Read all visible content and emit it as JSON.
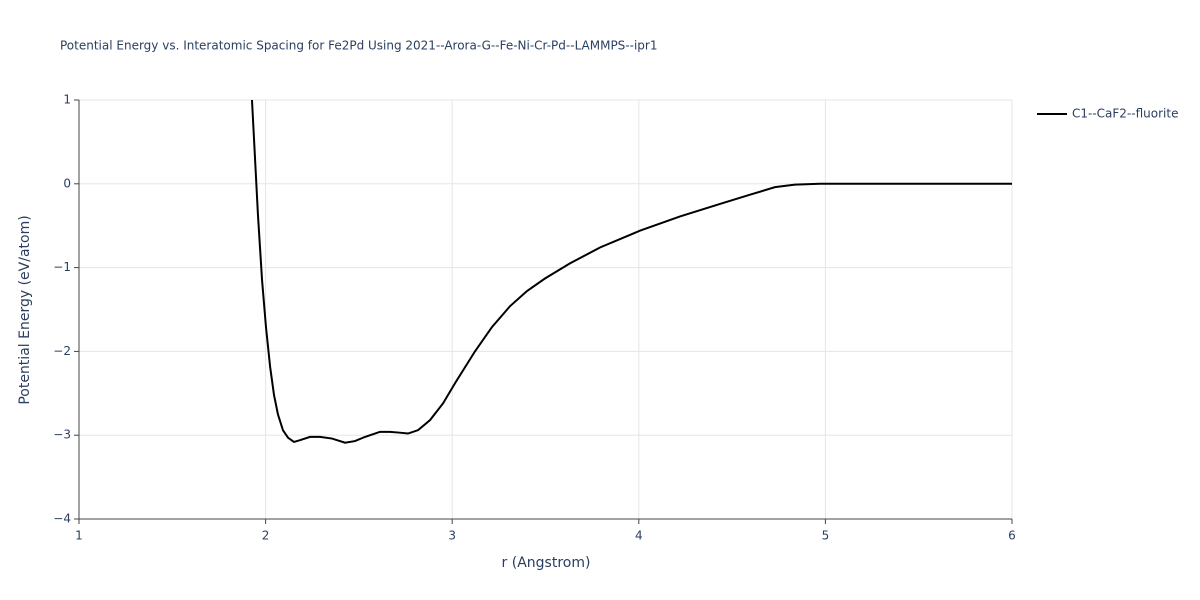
{
  "chart_data": {
    "type": "line",
    "title": "Potential Energy vs. Interatomic Spacing for Fe2Pd Using 2021--Arora-G--Fe-Ni-Cr-Pd--LAMMPS--ipr1",
    "x_label": "r (Angstrom)",
    "y_label": "Potential Energy (eV/atom)",
    "xlim": [
      1,
      6
    ],
    "ylim": [
      -4,
      1
    ],
    "xticks": [
      1,
      2,
      3,
      4,
      5,
      6
    ],
    "yticks": [
      {
        "value": -4,
        "label": "−4"
      },
      {
        "value": -3,
        "label": "−3"
      },
      {
        "value": -2,
        "label": "−2"
      },
      {
        "value": -1,
        "label": "−1"
      },
      0,
      1
    ],
    "grid": true,
    "legend": "top-right",
    "series": [
      {
        "name": "C1--CaF2--fluorite",
        "color": "#000000",
        "x": [
          1.927,
          1.959,
          1.981,
          2.002,
          2.024,
          2.045,
          2.066,
          2.093,
          2.12,
          2.152,
          2.184,
          2.238,
          2.292,
          2.356,
          2.426,
          2.479,
          2.533,
          2.613,
          2.667,
          2.72,
          2.763,
          2.817,
          2.881,
          2.951,
          3.015,
          3.122,
          3.213,
          3.31,
          3.401,
          3.497,
          3.631,
          3.792,
          4.006,
          4.221,
          4.435,
          4.596,
          4.73,
          4.837,
          4.971,
          6.0
        ],
        "values": [
          1.0,
          -0.37,
          -1.15,
          -1.71,
          -2.18,
          -2.52,
          -2.75,
          -2.94,
          -3.03,
          -3.08,
          -3.06,
          -3.02,
          -3.02,
          -3.04,
          -3.09,
          -3.07,
          -3.02,
          -2.96,
          -2.96,
          -2.97,
          -2.98,
          -2.94,
          -2.82,
          -2.62,
          -2.38,
          -2.0,
          -1.71,
          -1.46,
          -1.28,
          -1.13,
          -0.95,
          -0.76,
          -0.56,
          -0.39,
          -0.24,
          -0.13,
          -0.04,
          -0.01,
          0,
          0
        ]
      }
    ]
  }
}
